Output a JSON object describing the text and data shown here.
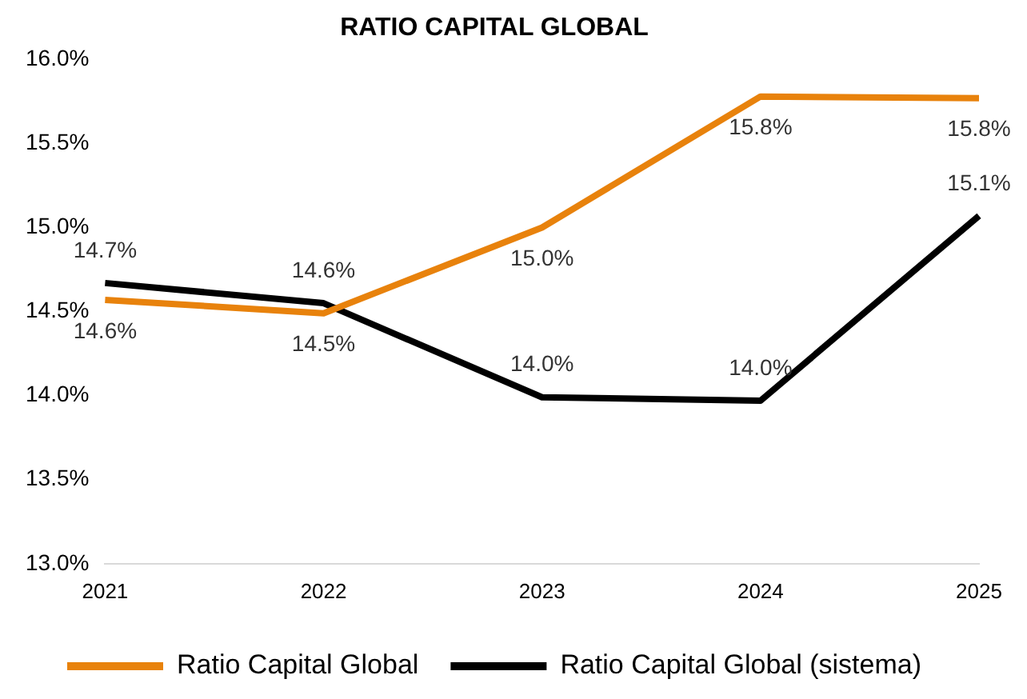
{
  "chart_data": {
    "type": "line",
    "title": "RATIO CAPITAL GLOBAL",
    "categories": [
      "2021",
      "2022",
      "2023",
      "2024",
      "2025"
    ],
    "series": [
      {
        "name": "Ratio Capital Global",
        "color": "#e8820c",
        "values": [
          14.57,
          14.49,
          15.0,
          15.78,
          15.77
        ],
        "value_labels": [
          "14.6%",
          "14.5%",
          "15.0%",
          "15.8%",
          "15.8%"
        ]
      },
      {
        "name": "Ratio Capital Global (sistema)",
        "color": "#000000",
        "values": [
          14.67,
          14.55,
          13.99,
          13.97,
          15.07
        ],
        "value_labels": [
          "14.7%",
          "14.6%",
          "14.0%",
          "14.0%",
          "15.1%"
        ]
      }
    ],
    "ylim": [
      13.0,
      16.0
    ],
    "yticks": [
      {
        "value": 13.0,
        "label": "13.0%"
      },
      {
        "value": 13.5,
        "label": "13.5%"
      },
      {
        "value": 14.0,
        "label": "14.0%"
      },
      {
        "value": 14.5,
        "label": "14.5%"
      },
      {
        "value": 15.0,
        "label": "15.0%"
      },
      {
        "value": 15.5,
        "label": "15.5%"
      },
      {
        "value": 16.0,
        "label": "16.0%"
      }
    ],
    "grid": false,
    "legend": "bottom",
    "marker": "none",
    "line_style": "solid"
  }
}
